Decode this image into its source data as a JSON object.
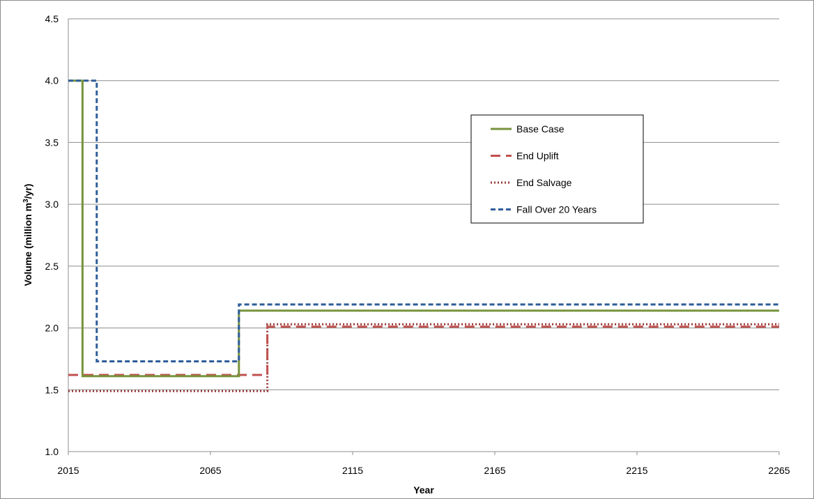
{
  "chart_data": {
    "type": "line",
    "title": "",
    "xlabel": "Year",
    "ylabel_prefix": "Volume (million m",
    "ylabel_sup": "3",
    "ylabel_suffix": "/yr)",
    "xlim": [
      2015,
      2265
    ],
    "ylim": [
      1.0,
      4.5
    ],
    "xticks": [
      2015,
      2065,
      2115,
      2165,
      2215,
      2265
    ],
    "xtick_labels": [
      "2015",
      "2065",
      "2115",
      "2165",
      "2215",
      "2265"
    ],
    "yticks": [
      1.0,
      1.5,
      2.0,
      2.5,
      3.0,
      3.5,
      4.0,
      4.5
    ],
    "ytick_labels": [
      "1.0",
      "1.5",
      "2.0",
      "2.5",
      "3.0",
      "3.5",
      "4.0",
      "4.5"
    ],
    "grid": true,
    "legend_position": "upper-right",
    "series": [
      {
        "name": "Base Case",
        "color": "#77933c",
        "style": "solid",
        "points": [
          [
            2015,
            4.0
          ],
          [
            2020,
            4.0
          ],
          [
            2020,
            1.61
          ],
          [
            2075,
            1.61
          ],
          [
            2075,
            2.14
          ],
          [
            2265,
            2.14
          ]
        ]
      },
      {
        "name": "End Uplift",
        "color": "#c0504d",
        "style": "dashed",
        "points": [
          [
            2015,
            1.62
          ],
          [
            2085,
            1.62
          ],
          [
            2085,
            2.01
          ],
          [
            2265,
            2.01
          ]
        ]
      },
      {
        "name": "End Salvage",
        "color": "#953735",
        "style": "dotted",
        "points": [
          [
            2015,
            1.49
          ],
          [
            2085,
            1.49
          ],
          [
            2085,
            2.03
          ],
          [
            2265,
            2.03
          ]
        ]
      },
      {
        "name": "Fall Over 20 Years",
        "color": "#2e5d9a",
        "style": "shortdash",
        "points": [
          [
            2015,
            4.0
          ],
          [
            2025,
            4.0
          ],
          [
            2025,
            1.73
          ],
          [
            2075,
            1.73
          ],
          [
            2075,
            2.19
          ],
          [
            2265,
            2.19
          ]
        ]
      }
    ]
  }
}
